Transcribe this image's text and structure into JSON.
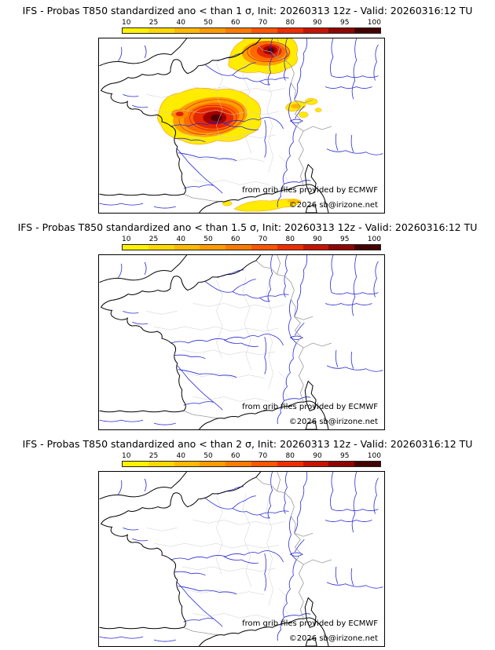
{
  "panels": [
    {
      "title": "IFS - Probas T850  standardized ano < than 1 σ, Init: 20260313 12z - Valid: 20260316:12 TU",
      "attribution": "from grib files provided by ECMWF",
      "copyright": "©2026 sb@irizone.net"
    },
    {
      "title": "IFS - Probas T850  standardized ano < than 1.5 σ, Init: 20260313 12z - Valid: 20260316:12 TU",
      "attribution": "from grib files provided by ECMWF",
      "copyright": "©2026 sb@irizone.net"
    },
    {
      "title": "IFS - Probas T850  standardized ano < than 2 σ, Init: 20260313 12z - Valid: 20260316:12 TU",
      "attribution": "from grib files provided by ECMWF",
      "copyright": "©2026 sb@irizone.net"
    }
  ],
  "colorbar": {
    "ticks": [
      "10",
      "25",
      "40",
      "50",
      "60",
      "70",
      "80",
      "90",
      "95",
      "100"
    ],
    "colors": [
      "#fff200",
      "#ffd800",
      "#ffb900",
      "#ff9b00",
      "#ff7b00",
      "#ff5500",
      "#ee2e00",
      "#c61400",
      "#8f0600",
      "#450000"
    ]
  },
  "map_colors": {
    "coast": "#000000",
    "country_border": "#999999",
    "department_border": "#cccccc",
    "river": "#2a2ad4"
  }
}
